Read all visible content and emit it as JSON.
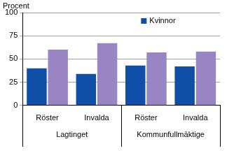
{
  "chart_data": {
    "type": "bar",
    "ylabel": "Procent",
    "categories": [
      "Röster",
      "Invalda",
      "Röster",
      "Invalda"
    ],
    "category_groups": [
      {
        "label": "Lagtinget",
        "span": 2
      },
      {
        "label": "Kommunfullmäktige",
        "span": 2
      }
    ],
    "series": [
      {
        "name": "Kvinnor",
        "color": "#0f4fa8",
        "values": [
          40,
          34,
          43,
          42
        ]
      },
      {
        "color": "#9a85c4",
        "values": [
          60,
          67,
          57,
          58
        ]
      }
    ],
    "ylim": [
      0,
      100
    ],
    "yticks": [
      0,
      25,
      50,
      75,
      100
    ],
    "grid": true,
    "legend": "upper right"
  }
}
